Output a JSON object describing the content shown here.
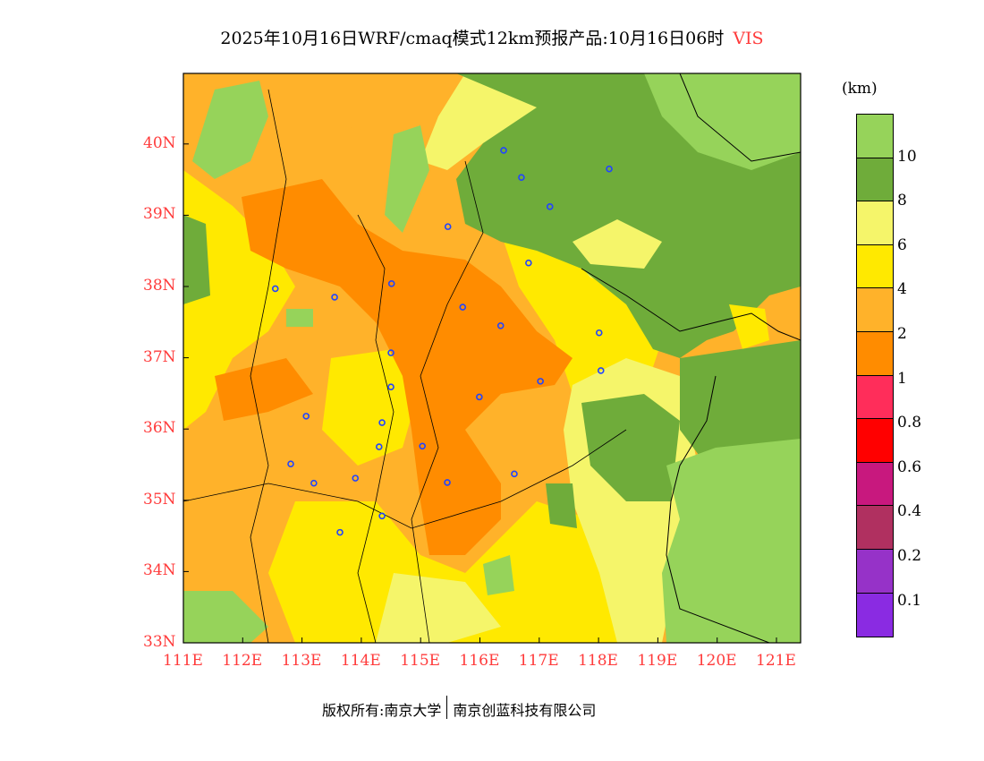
{
  "title": {
    "text": "2025年10月16日WRF/cmaq模式12km预报产品:10月16日06时",
    "variable": "VIS"
  },
  "map": {
    "lon_range": [
      111,
      121.4
    ],
    "lat_range": [
      33,
      41
    ],
    "lon_ticks": [
      "111E",
      "112E",
      "113E",
      "114E",
      "115E",
      "116E",
      "117E",
      "118E",
      "119E",
      "120E",
      "121E"
    ],
    "lat_ticks": [
      "33N",
      "34N",
      "35N",
      "36N",
      "37N",
      "38N",
      "39N",
      "40N"
    ],
    "city_markers": [
      [
        116.4,
        39.91
      ],
      [
        116.7,
        39.53
      ],
      [
        118.18,
        39.65
      ],
      [
        117.18,
        39.12
      ],
      [
        115.46,
        38.84
      ],
      [
        116.82,
        38.33
      ],
      [
        112.55,
        37.97
      ],
      [
        113.55,
        37.85
      ],
      [
        114.51,
        38.04
      ],
      [
        115.71,
        37.71
      ],
      [
        116.35,
        37.45
      ],
      [
        118.01,
        37.35
      ],
      [
        114.5,
        37.07
      ],
      [
        118.04,
        36.82
      ],
      [
        114.5,
        36.59
      ],
      [
        117.02,
        36.67
      ],
      [
        115.99,
        36.45
      ],
      [
        113.07,
        36.18
      ],
      [
        114.35,
        36.09
      ],
      [
        115.03,
        35.76
      ],
      [
        114.3,
        35.75
      ],
      [
        112.81,
        35.51
      ],
      [
        116.58,
        35.37
      ],
      [
        113.2,
        35.24
      ],
      [
        113.9,
        35.31
      ],
      [
        115.45,
        35.25
      ],
      [
        114.35,
        34.78
      ],
      [
        113.64,
        34.55
      ]
    ]
  },
  "colorbar": {
    "unit": "(km)",
    "colors": [
      "#96d35a",
      "#6fac3a",
      "#f5f56a",
      "#ffe900",
      "#ffb22a",
      "#ff8c00",
      "#ff2d5a",
      "#ff0000",
      "#c8187e",
      "#b03060",
      "#9632c8",
      "#8a2be2"
    ],
    "labels": [
      "10",
      "8",
      "6",
      "4",
      "2",
      "1",
      "0.8",
      "0.6",
      "0.4",
      "0.2",
      "0.1"
    ]
  },
  "footer": {
    "left": "版权所有:南京大学",
    "right": "南京创蓝科技有限公司"
  }
}
